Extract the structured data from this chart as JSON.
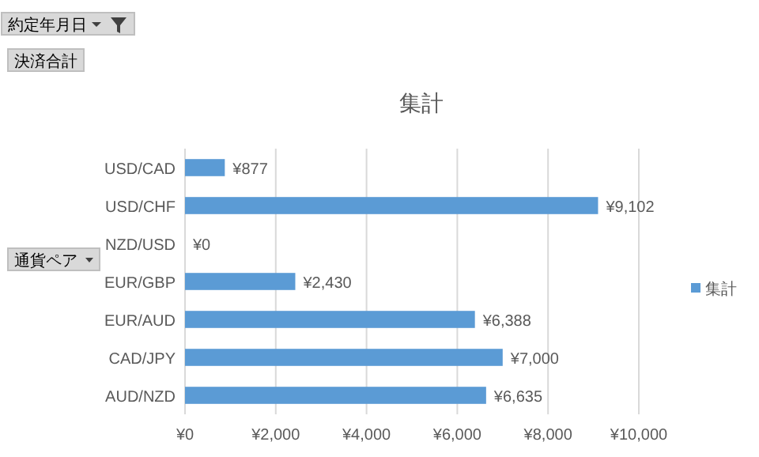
{
  "chart_data": {
    "type": "bar",
    "orientation": "horizontal",
    "title": "集計",
    "categories": [
      "USD/CAD",
      "USD/CHF",
      "NZD/USD",
      "EUR/GBP",
      "EUR/AUD",
      "CAD/JPY",
      "AUD/NZD"
    ],
    "series": [
      {
        "name": "集計",
        "color": "#5b9bd5",
        "values": [
          877,
          9102,
          0,
          2430,
          6388,
          7000,
          6635
        ],
        "value_labels": [
          "¥877",
          "¥9,102",
          "¥0",
          "¥2,430",
          "¥6,388",
          "¥7,000",
          "¥6,635"
        ]
      }
    ],
    "xlim": [
      0,
      10000
    ],
    "xticks": [
      {
        "value": 0,
        "label": "¥0"
      },
      {
        "value": 2000,
        "label": "¥2,000"
      },
      {
        "value": 4000,
        "label": "¥4,000"
      },
      {
        "value": 6000,
        "label": "¥6,000"
      },
      {
        "value": 8000,
        "label": "¥8,000"
      },
      {
        "value": 10000,
        "label": "¥10,000"
      }
    ],
    "grid": "x",
    "legend": "right",
    "annotations": [
      "約定年月日",
      "決済合計",
      "通貨ペア"
    ]
  }
}
